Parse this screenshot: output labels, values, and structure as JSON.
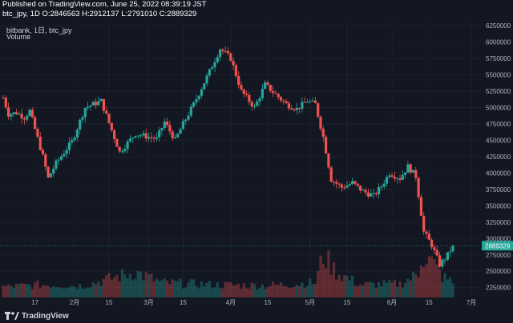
{
  "header": {
    "published": "Published on TradingView.com, June 25, 2022 08:39:19 JST",
    "ohlc": "btc_jpy, 1D O:2846563 H:2912137 L:2791010 C:2889329"
  },
  "legend": {
    "line1": "bitbank, 1日, btc_jpy",
    "line2": "Volume"
  },
  "footer": {
    "brand": "TradingView"
  },
  "colors": {
    "background": "#131722",
    "up": "#26a69a",
    "down": "#ef5350",
    "price_tag": "#26a69a",
    "axis_text": "#b2b5be",
    "grid": "#1c2030"
  },
  "chart_data": {
    "type": "candlestick",
    "symbol": "btc_jpy",
    "interval": "1D",
    "y_axis": {
      "ticks": [
        2250000,
        2500000,
        2750000,
        3000000,
        3250000,
        3500000,
        3750000,
        4000000,
        4250000,
        4500000,
        4750000,
        5000000,
        5250000,
        5500000,
        5750000,
        6000000,
        6250000
      ],
      "tick_labels": [
        "2250000",
        "2500000",
        "2750000",
        "3000000",
        "3250000",
        "3500000",
        "3750000",
        "4000000",
        "4250000",
        "4500000",
        "4750000",
        "5000000",
        "5250000",
        "5500000",
        "5750000",
        "6000000",
        "6250000"
      ],
      "range": [
        2100000,
        6300000
      ]
    },
    "x_axis": {
      "tick_labels": [
        "17",
        "2月",
        "15",
        "3月",
        "15",
        "4月",
        "15",
        "5月",
        "15",
        "6月",
        "15",
        "7月"
      ],
      "tick_bar_index": [
        12,
        27,
        40,
        55,
        68,
        86,
        100,
        116,
        130,
        147,
        161,
        177
      ]
    },
    "last_price": 2889329,
    "last_price_label": "2889329",
    "price_anchors": [
      [
        0,
        5150000
      ],
      [
        2,
        4900000
      ],
      [
        5,
        4920000
      ],
      [
        8,
        4850000
      ],
      [
        10,
        4950000
      ],
      [
        15,
        4250000
      ],
      [
        17,
        3920000
      ],
      [
        20,
        4150000
      ],
      [
        26,
        4480000
      ],
      [
        31,
        5000000
      ],
      [
        37,
        5100000
      ],
      [
        44,
        4320000
      ],
      [
        50,
        4600000
      ],
      [
        55,
        4550000
      ],
      [
        58,
        4520000
      ],
      [
        61,
        4780000
      ],
      [
        65,
        4500000
      ],
      [
        68,
        4750000
      ],
      [
        72,
        5050000
      ],
      [
        78,
        5550000
      ],
      [
        82,
        5900000
      ],
      [
        86,
        5750000
      ],
      [
        90,
        5250000
      ],
      [
        95,
        5000000
      ],
      [
        99,
        5350000
      ],
      [
        103,
        5200000
      ],
      [
        107,
        5050000
      ],
      [
        111,
        4980000
      ],
      [
        115,
        5100000
      ],
      [
        118,
        5050000
      ],
      [
        121,
        4550000
      ],
      [
        124,
        3900000
      ],
      [
        128,
        3780000
      ],
      [
        132,
        3850000
      ],
      [
        136,
        3720000
      ],
      [
        140,
        3650000
      ],
      [
        143,
        3800000
      ],
      [
        146,
        4000000
      ],
      [
        150,
        3920000
      ],
      [
        153,
        4100000
      ],
      [
        156,
        3950000
      ],
      [
        159,
        3100000
      ],
      [
        162,
        2900000
      ],
      [
        165,
        2600000
      ],
      [
        168,
        2750000
      ],
      [
        170,
        2889329
      ]
    ],
    "volume_anchors": [
      [
        0,
        0.25
      ],
      [
        14,
        0.3
      ],
      [
        30,
        0.28
      ],
      [
        50,
        0.6
      ],
      [
        60,
        0.35
      ],
      [
        80,
        0.3
      ],
      [
        100,
        0.28
      ],
      [
        118,
        0.35
      ],
      [
        121,
        1.0
      ],
      [
        126,
        0.6
      ],
      [
        135,
        0.3
      ],
      [
        150,
        0.32
      ],
      [
        157,
        0.55
      ],
      [
        158,
        1.0
      ],
      [
        162,
        0.85
      ],
      [
        166,
        0.5
      ],
      [
        170,
        0.35
      ]
    ]
  }
}
